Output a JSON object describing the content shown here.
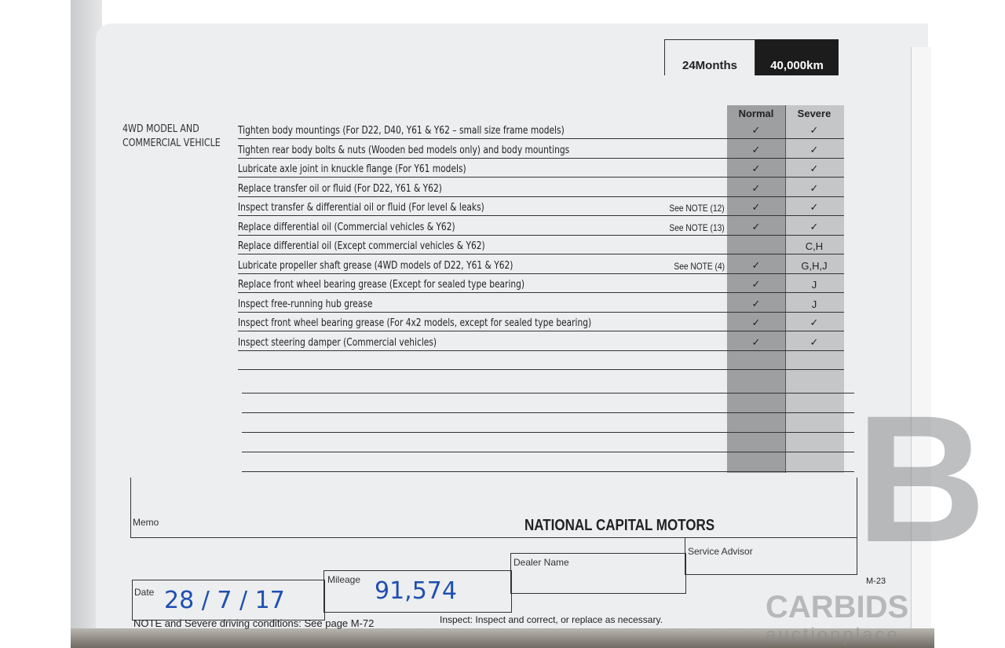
{
  "header": {
    "interval_months": "24Months",
    "interval_km": "40,000km"
  },
  "section_label": "4WD MODEL AND COMMERCIAL VEHICLE",
  "columns": {
    "normal": "Normal",
    "severe": "Severe"
  },
  "rows": [
    {
      "task": "Tighten body mountings (For D22, D40, Y61 & Y62 – small size frame models)",
      "note": "",
      "normal": "✓",
      "severe": "✓"
    },
    {
      "task": "Tighten rear body bolts & nuts (Wooden bed models only) and body mountings",
      "note": "",
      "normal": "✓",
      "severe": "✓"
    },
    {
      "task": "Lubricate axle joint in knuckle flange (For Y61 models)",
      "note": "",
      "normal": "✓",
      "severe": "✓"
    },
    {
      "task": "Replace transfer oil or fluid (For D22, Y61 & Y62)",
      "note": "",
      "normal": "✓",
      "severe": "✓"
    },
    {
      "task": "Inspect transfer & differential oil or fluid (For level & leaks)",
      "note": "See NOTE (12)",
      "normal": "✓",
      "severe": "✓"
    },
    {
      "task": "Replace differential oil (Commercial vehicles & Y62)",
      "note": "See NOTE (13)",
      "normal": "✓",
      "severe": "✓"
    },
    {
      "task": "Replace differential oil (Except commercial vehicles & Y62)",
      "note": "",
      "normal": "",
      "severe": "C,H"
    },
    {
      "task": "Lubricate propeller shaft grease (4WD models of D22, Y61 & Y62)",
      "note": "See NOTE (4)",
      "normal": "✓",
      "severe": "G,H,J"
    },
    {
      "task": "Replace front wheel bearing grease (Except for sealed type bearing)",
      "note": "",
      "normal": "✓",
      "severe": "J"
    },
    {
      "task": "Inspect free-running hub grease",
      "note": "",
      "normal": "✓",
      "severe": "J"
    },
    {
      "task": "Inspect front wheel bearing grease (For 4x2 models, except for sealed type bearing)",
      "note": "",
      "normal": "✓",
      "severe": "✓"
    },
    {
      "task": "Inspect steering damper (Commercial vehicles)",
      "note": "",
      "normal": "✓",
      "severe": "✓"
    },
    {
      "task": "",
      "note": "",
      "normal": "",
      "severe": ""
    }
  ],
  "footer": {
    "memo_label": "Memo",
    "date_label": "Date",
    "date_value": "28 / 7 / 17",
    "mileage_label": "Mileage",
    "mileage_value": "91,574",
    "dealer_label": "Dealer Name",
    "dealer_stamp": "NATIONAL CAPITAL MOTORS",
    "advisor_label": "Service Advisor",
    "note_text": "NOTE and Severe driving conditions: See page M-72",
    "inspect_text": "Inspect: Inspect and correct, or replace as necessary.",
    "page_number": "M-23"
  },
  "watermark": {
    "brand": "CARBIDS",
    "sub": "auctionplace"
  }
}
